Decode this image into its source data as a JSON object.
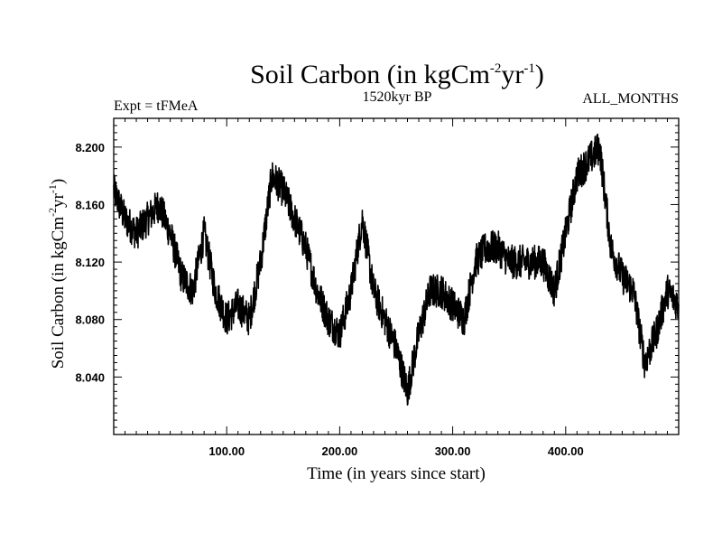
{
  "chart_data": {
    "type": "line",
    "title": {
      "main": "Soil Carbon (in kgCm",
      "sup1": "-2",
      "mid": "yr",
      "sup2": "-1",
      "end": ")"
    },
    "subtitle_left": "Expt = tFMeA",
    "subtitle_center": "1520kyr BP",
    "subtitle_right": "ALL_MONTHS",
    "xlabel": "Time (in years since start)",
    "ylabel": {
      "main": "Soil Carbon (in kgCm",
      "sup1": "-2",
      "mid": "yr",
      "sup2": "-1",
      "end": ")"
    },
    "xlim": [
      0,
      500
    ],
    "ylim": [
      8.0,
      8.22
    ],
    "x_ticks": [
      100,
      200,
      300,
      400
    ],
    "x_tick_labels": [
      "100.00",
      "200.00",
      "300.00",
      "400.00"
    ],
    "y_ticks": [
      8.04,
      8.08,
      8.12,
      8.16,
      8.2
    ],
    "y_tick_labels": [
      "8.040",
      "8.080",
      "8.120",
      "8.160",
      "8.200"
    ],
    "series": [
      {
        "name": "Soil Carbon",
        "color": "#000000",
        "x": [
          0,
          10,
          20,
          30,
          40,
          50,
          60,
          70,
          80,
          90,
          100,
          110,
          120,
          130,
          140,
          150,
          160,
          170,
          180,
          190,
          200,
          210,
          220,
          230,
          240,
          250,
          260,
          270,
          280,
          290,
          300,
          310,
          320,
          330,
          340,
          350,
          360,
          370,
          380,
          390,
          400,
          410,
          420,
          430,
          440,
          450,
          460,
          470,
          480,
          490,
          500
        ],
        "y": [
          8.17,
          8.15,
          8.14,
          8.15,
          8.16,
          8.14,
          8.11,
          8.1,
          8.14,
          8.1,
          8.08,
          8.09,
          8.08,
          8.12,
          8.18,
          8.17,
          8.15,
          8.13,
          8.1,
          8.08,
          8.07,
          8.1,
          8.15,
          8.1,
          8.08,
          8.06,
          8.03,
          8.07,
          8.1,
          8.1,
          8.09,
          8.08,
          8.12,
          8.13,
          8.13,
          8.12,
          8.12,
          8.12,
          8.12,
          8.1,
          8.14,
          8.18,
          8.19,
          8.2,
          8.13,
          8.11,
          8.1,
          8.05,
          8.07,
          8.1,
          8.09
        ],
        "noise_amplitude": 0.012
      }
    ]
  }
}
